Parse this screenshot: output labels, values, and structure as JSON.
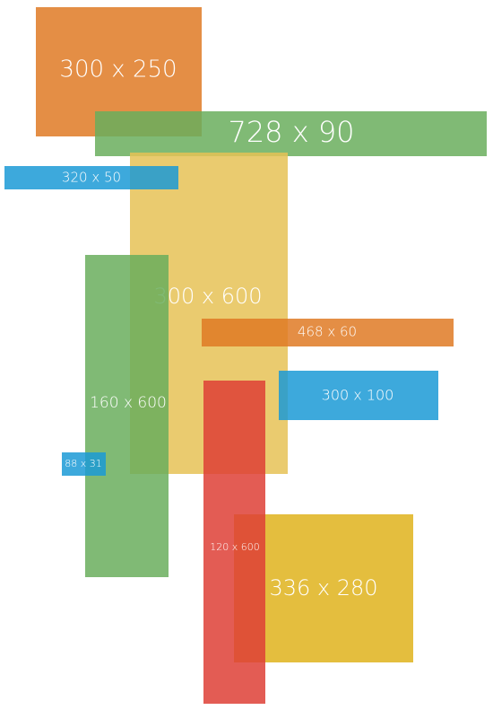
{
  "boxes": [
    {
      "label": "300 x 250"
    },
    {
      "label": "728 x 90"
    },
    {
      "label": "300 x 600"
    },
    {
      "label": "320 x 50"
    },
    {
      "label": "160 x 600"
    },
    {
      "label": "468 x 60"
    },
    {
      "label": "300 x 100"
    },
    {
      "label": "88 x 31"
    },
    {
      "label": "336 x 280"
    },
    {
      "label": "120 x 600"
    }
  ]
}
